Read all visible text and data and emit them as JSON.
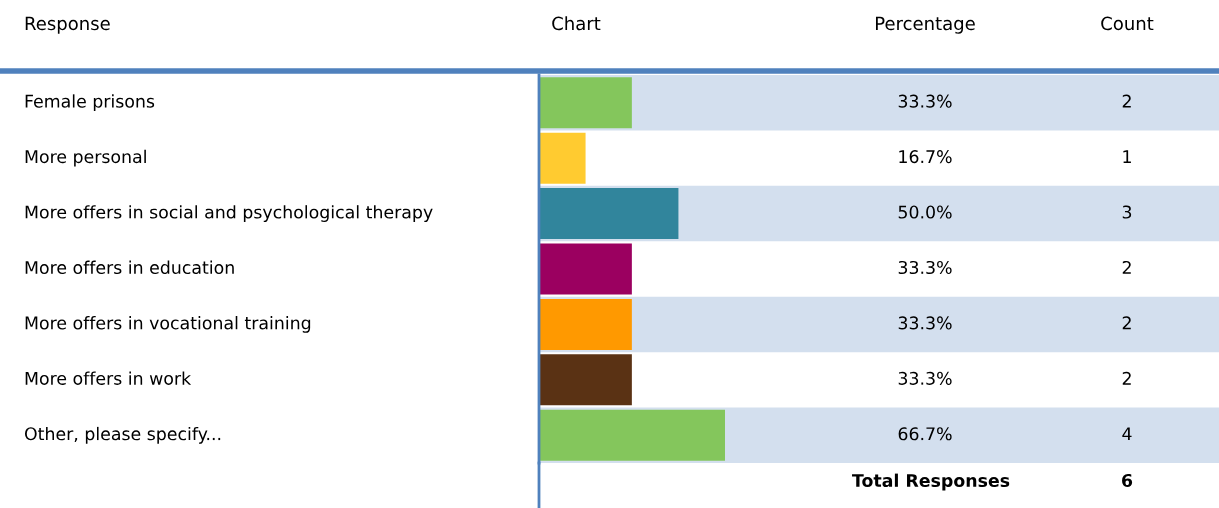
{
  "chart_data": {
    "type": "bar",
    "orientation": "horizontal",
    "categories": [
      "Female prisons",
      "More personal",
      "More offers in social and psychological therapy",
      "More offers in education",
      "More offers in vocational training",
      "More offers in work",
      "Other, please specify..."
    ],
    "values": [
      33.3,
      16.7,
      50.0,
      33.3,
      33.3,
      33.3,
      66.7
    ],
    "colors": [
      "#84c65c",
      "#ffcb30",
      "#31859c",
      "#9b0060",
      "#ff9900",
      "#5a3214",
      "#84c65c"
    ],
    "value_labels": [
      "33.3%",
      "16.7%",
      "50.0%",
      "33.3%",
      "33.3%",
      "33.3%",
      "66.7%"
    ],
    "tick_labels": "y",
    "annotations": [
      "Response",
      "Chart",
      "Percentage",
      "Count",
      "2",
      "1",
      "3",
      "2",
      "2",
      "2",
      "4",
      "Total Responses",
      "6"
    ]
  }
}
